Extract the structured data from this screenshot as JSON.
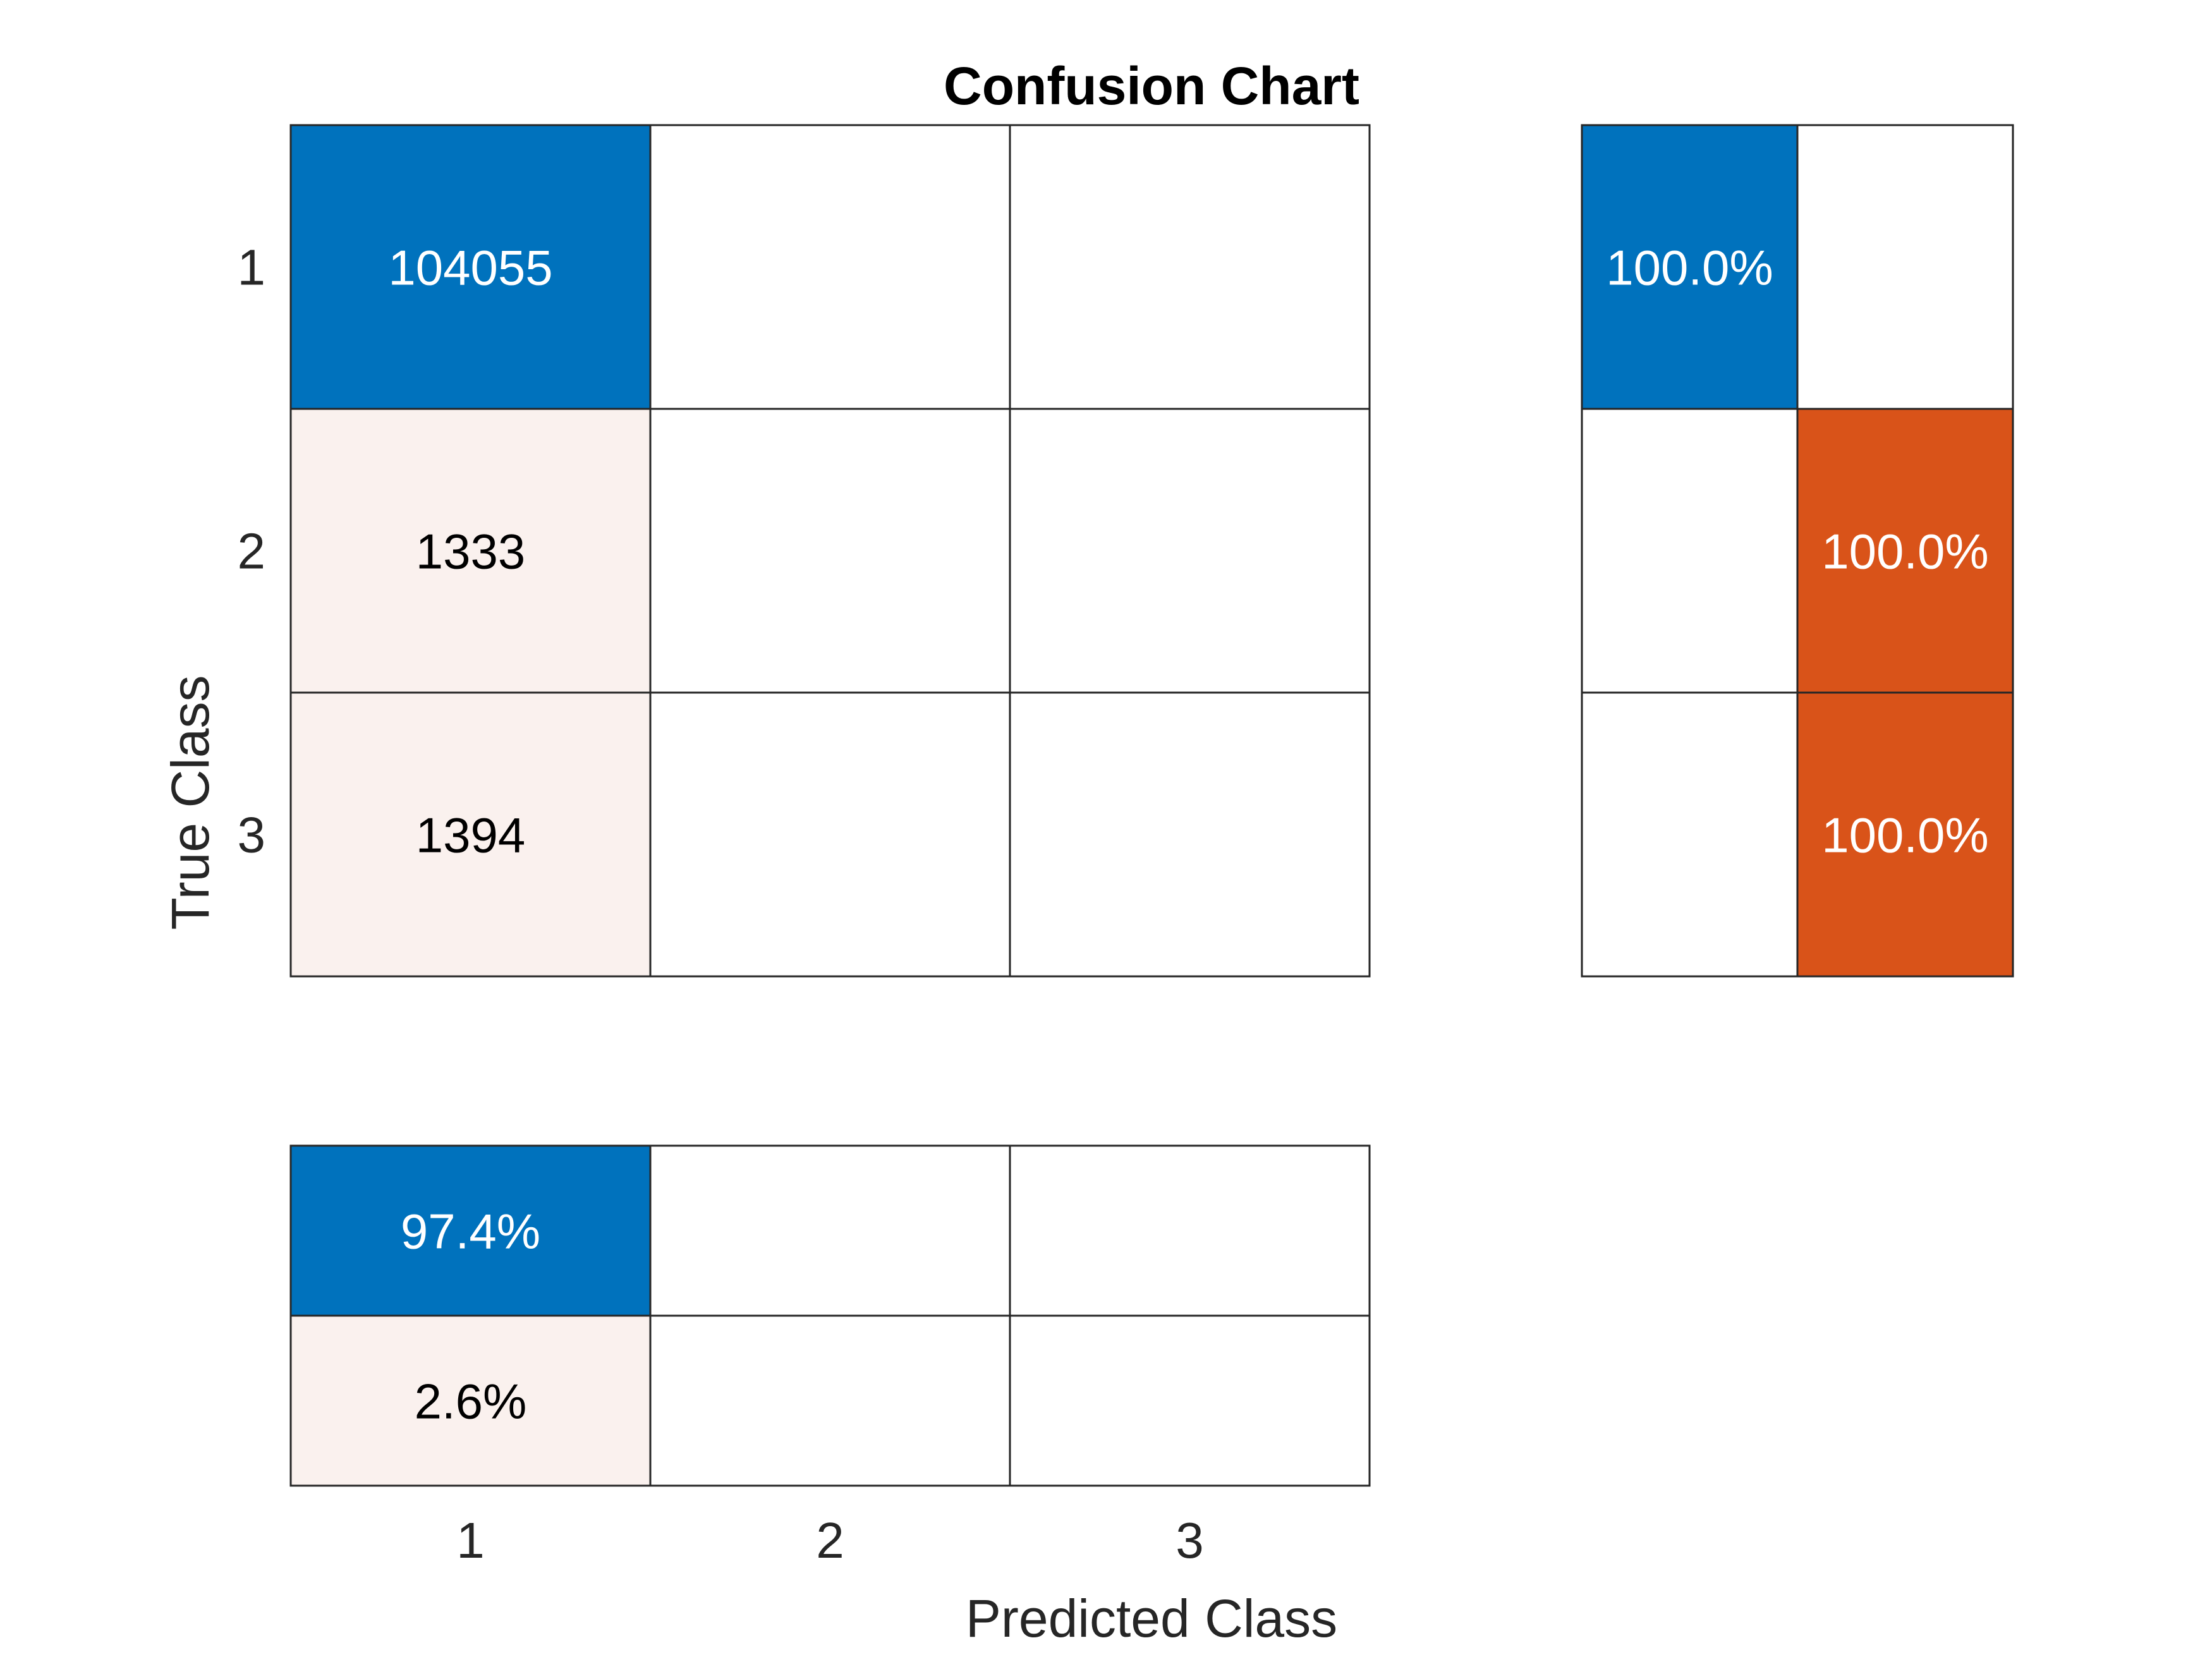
{
  "chart_data": {
    "type": "heatmap",
    "title": "Confusion Chart",
    "xlabel": "Predicted Class",
    "ylabel": "True Class",
    "classes": [
      "1",
      "2",
      "3"
    ],
    "matrix": [
      [
        104055,
        null,
        null
      ],
      [
        1333,
        null,
        null
      ],
      [
        1394,
        null,
        null
      ]
    ],
    "matrix_labels": [
      [
        "104055",
        "",
        ""
      ],
      [
        "1333",
        "",
        ""
      ],
      [
        "1394",
        "",
        ""
      ]
    ],
    "row_summary": {
      "values": [
        [
          100.0,
          null
        ],
        [
          null,
          100.0
        ],
        [
          null,
          100.0
        ]
      ],
      "labels": [
        [
          "100.0%",
          ""
        ],
        [
          "",
          "100.0%"
        ],
        [
          "",
          "100.0%"
        ]
      ]
    },
    "column_summary": {
      "values": [
        [
          97.4,
          null,
          null
        ],
        [
          2.6,
          null,
          null
        ]
      ],
      "labels": [
        [
          "97.4%",
          "",
          ""
        ],
        [
          "2.6%",
          "",
          ""
        ]
      ]
    },
    "colors": {
      "correct": "#0072BD",
      "incorrect": "#D95319",
      "incorrect_light": "#FAF1EE",
      "empty": "#FFFFFF",
      "grid_line": "#262626",
      "text_dark": "#000000",
      "text_light": "#FFFFFF",
      "axis_text": "#262626"
    }
  }
}
